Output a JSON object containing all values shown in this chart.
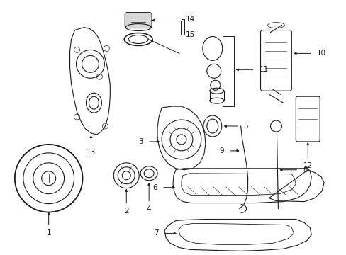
{
  "bg_color": "#ffffff",
  "line_color": "#1a1a1a",
  "font_size": 7.5,
  "fig_w": 4.89,
  "fig_h": 3.6,
  "dpi": 100
}
